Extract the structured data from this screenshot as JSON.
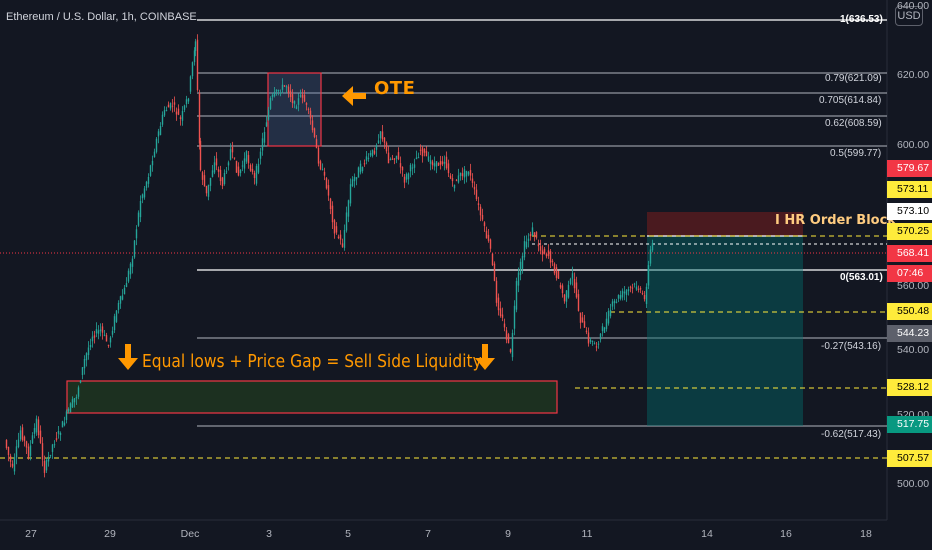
{
  "header": {
    "symbol_title": "Ethereum / U.S. Dollar, 1h, COINBASE",
    "currency": "USD"
  },
  "annotations": {
    "ote": "OTE",
    "liquidity": "Equal lows + Price Gap = Sell Side Liquidity",
    "order_block": "I HR Order Block",
    "arrow_color": "#ff9800"
  },
  "fib_levels": [
    {
      "label": "1(636.53)",
      "price": 636.53
    },
    {
      "label": "0.79(621.09)",
      "price": 621.09
    },
    {
      "label": "0.705(614.84)",
      "price": 614.84
    },
    {
      "label": "0.62(608.59)",
      "price": 608.59
    },
    {
      "label": "0.5(599.77)",
      "price": 599.77
    },
    {
      "label": "0(563.01)",
      "price": 563.01
    },
    {
      "label": "-0.27(543.16)",
      "price": 543.16
    },
    {
      "label": "-0.62(517.43)",
      "price": 517.43
    }
  ],
  "price_axis": {
    "ticks": [
      "640.00",
      "620.00",
      "600.00",
      "560.00",
      "540.00",
      "520.00",
      "500.00"
    ],
    "tags": [
      {
        "text": "579.67",
        "bg": "#f23645",
        "fg": "#ffffff"
      },
      {
        "text": "573.11",
        "bg": "#ffeb3b",
        "fg": "#000000"
      },
      {
        "text": "573.10",
        "bg": "#ffffff",
        "fg": "#000000"
      },
      {
        "text": "570.25",
        "bg": "#ffeb3b",
        "fg": "#000000"
      },
      {
        "text": "568.41",
        "bg": "#f23645",
        "fg": "#ffffff"
      },
      {
        "text": "07:46",
        "bg": "#f23645",
        "fg": "#ffffff"
      },
      {
        "text": "550.48",
        "bg": "#ffeb3b",
        "fg": "#000000"
      },
      {
        "text": "544.23",
        "bg": "#5d606b",
        "fg": "#ffffff"
      },
      {
        "text": "528.12",
        "bg": "#ffeb3b",
        "fg": "#000000"
      },
      {
        "text": "517.75",
        "bg": "#089981",
        "fg": "#ffffff"
      },
      {
        "text": "507.57",
        "bg": "#ffeb3b",
        "fg": "#000000"
      }
    ]
  },
  "time_axis": {
    "ticks": [
      "27",
      "29",
      "Dec",
      "3",
      "5",
      "7",
      "9",
      "11",
      "14",
      "16",
      "18"
    ]
  },
  "colors": {
    "background": "#131722",
    "bull": "#26a69a",
    "bear": "#ef5350",
    "dashed_level": "#ffeb3b"
  }
}
